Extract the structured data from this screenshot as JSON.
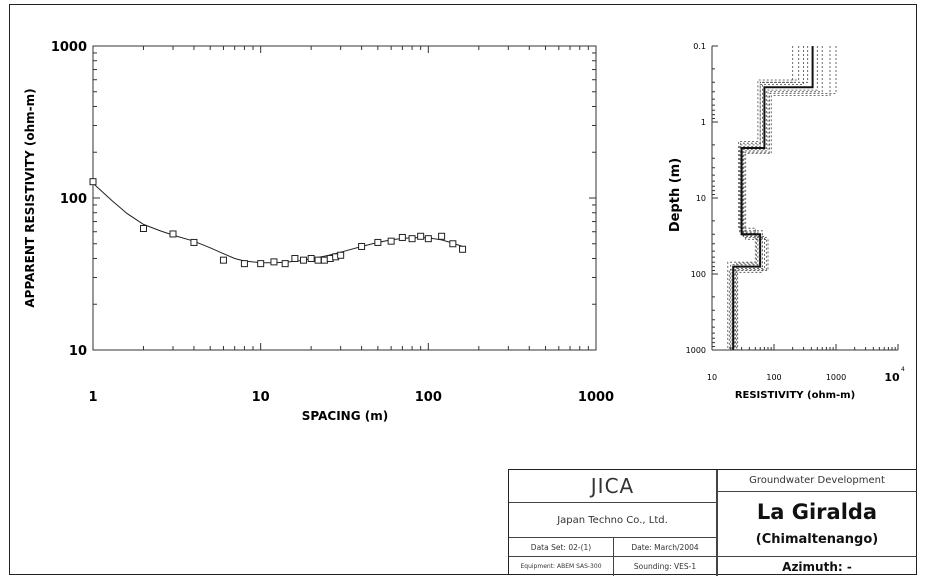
{
  "chart_data": [
    {
      "type": "scatter",
      "xlabel": "SPACING (m)",
      "ylabel": "APPARENT RESISTIVITY (ohm-m)",
      "x_scale": "log",
      "y_scale": "log",
      "xlim": [
        1,
        1000
      ],
      "ylim": [
        10,
        1000
      ],
      "x_ticks": [
        "1",
        "10",
        "100",
        "1000"
      ],
      "y_ticks": [
        "10",
        "100",
        "1000"
      ],
      "series": [
        {
          "kind": "measured-points",
          "x": [
            1,
            2,
            3,
            4,
            6,
            8,
            10,
            12,
            14,
            16,
            18,
            20,
            22,
            24,
            26,
            28,
            30,
            40,
            50,
            60,
            70,
            80,
            90,
            100,
            120,
            140,
            160
          ],
          "y": [
            128,
            63,
            58,
            51,
            39,
            37,
            37,
            38,
            37,
            40,
            39,
            40,
            39,
            39,
            40,
            41,
            42,
            48,
            51,
            52,
            55,
            54,
            56,
            54,
            56,
            50,
            46
          ]
        },
        {
          "kind": "model-fit-curve",
          "x": [
            1,
            1.3,
            1.6,
            2,
            2.5,
            3,
            4,
            5,
            6,
            7,
            8,
            10,
            12,
            14,
            17,
            20,
            25,
            30,
            40,
            50,
            60,
            70,
            80,
            90,
            100,
            120,
            140,
            160
          ],
          "y": [
            125,
            96,
            79,
            67,
            61,
            57,
            52,
            47,
            43,
            40,
            38.5,
            37.5,
            37.5,
            37.8,
            38.6,
            39.8,
            41.8,
            44,
            48,
            51,
            53,
            54.2,
            54.8,
            55,
            54.6,
            53,
            50.5,
            48
          ]
        }
      ]
    },
    {
      "type": "line",
      "xlabel": "RESISTIVITY (ohm-m)",
      "ylabel": "Depth (m)",
      "x_scale": "log",
      "y_scale": "log",
      "y_inverted": true,
      "xlim": [
        10,
        10000
      ],
      "ylim": [
        0.1,
        1000
      ],
      "x_ticks": [
        "10",
        "100",
        "1000",
        "10"
      ],
      "x_tick_exponent": "4",
      "y_ticks": [
        "0.1",
        "1",
        "10",
        "100",
        "1000"
      ],
      "series": [
        {
          "kind": "best-fit-model",
          "layers": [
            {
              "resistivity": 420,
              "top": 0.1,
              "bottom": 0.35
            },
            {
              "resistivity": 70,
              "top": 0.35,
              "bottom": 2.2
            },
            {
              "resistivity": 30,
              "top": 2.2,
              "bottom": 30
            },
            {
              "resistivity": 60,
              "top": 30,
              "bottom": 80
            },
            {
              "resistivity": 22,
              "top": 80,
              "bottom": 1000
            }
          ]
        },
        {
          "kind": "equivalent-models",
          "models": [
            [
              [
                300,
                0.32
              ],
              [
                60,
                2.0
              ],
              [
                28,
                28
              ],
              [
                55,
                75
              ],
              [
                20
              ]
            ],
            [
              [
                600,
                0.4
              ],
              [
                80,
                2.4
              ],
              [
                32,
                32
              ],
              [
                70,
                85
              ],
              [
                24
              ]
            ],
            [
              [
                250,
                0.28
              ],
              [
                55,
                1.8
              ],
              [
                27,
                25
              ],
              [
                50,
                70
              ],
              [
                18
              ]
            ],
            [
              [
                800,
                0.45
              ],
              [
                90,
                2.6
              ],
              [
                35,
                35
              ],
              [
                80,
                90
              ],
              [
                26
              ]
            ],
            [
              [
                350,
                0.3
              ],
              [
                65,
                1.9
              ],
              [
                29,
                27
              ],
              [
                65,
                95
              ],
              [
                21
              ]
            ],
            [
              [
                500,
                0.38
              ],
              [
                75,
                2.3
              ],
              [
                31,
                31
              ],
              [
                58,
                78
              ],
              [
                23
              ]
            ],
            [
              [
                1000,
                0.42
              ],
              [
                85,
                2.5
              ],
              [
                33,
                33
              ],
              [
                75,
                88
              ],
              [
                19
              ]
            ],
            [
              [
                200,
                0.3
              ],
              [
                60,
                2.1
              ],
              [
                29,
                29
              ],
              [
                52,
                72
              ],
              [
                25
              ]
            ]
          ]
        }
      ]
    }
  ],
  "title_block": {
    "client": "JICA",
    "company": "Japan Techno Co., Ltd.",
    "data_set": "Data Set: 02-(1)",
    "date": "Date: March/2004",
    "equipment": "Equipment: ABEM SAS-300",
    "sounding": "Sounding: VES-1",
    "project": "Groundwater Development",
    "site": "La Giralda",
    "region": "(Chimaltenango)",
    "azimuth": "Azimuth: -"
  }
}
